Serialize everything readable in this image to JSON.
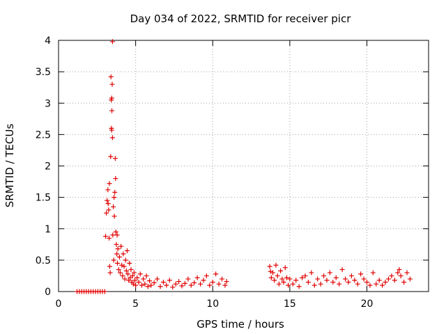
{
  "chart_data": {
    "type": "scatter",
    "title": "Day 034 of 2022, SRMTID for receiver picr",
    "xlabel": "GPS time / hours",
    "ylabel": "SRMTID / TECUs",
    "xlim": [
      0,
      24
    ],
    "ylim": [
      0,
      4
    ],
    "grid": true,
    "marker": "+",
    "series_color": "#e00000",
    "x_ticks": [
      0,
      5,
      10,
      15,
      20
    ],
    "x_tick_labels": [
      "0",
      "5",
      "10",
      "15",
      "20"
    ],
    "y_ticks": [
      0,
      0.5,
      1,
      1.5,
      2,
      2.5,
      3,
      3.5,
      4
    ],
    "y_tick_labels": [
      "0",
      "0.5",
      "1",
      "1.5",
      "2",
      "2.5",
      "3",
      "3.5",
      "4"
    ],
    "points": [
      [
        1.2,
        0
      ],
      [
        1.35,
        0
      ],
      [
        1.5,
        0
      ],
      [
        1.65,
        0
      ],
      [
        1.8,
        0
      ],
      [
        1.95,
        0
      ],
      [
        2.1,
        0
      ],
      [
        2.25,
        0
      ],
      [
        2.4,
        0
      ],
      [
        2.55,
        0
      ],
      [
        2.7,
        0
      ],
      [
        2.85,
        0
      ],
      [
        3.0,
        0
      ],
      [
        3.05,
        0.88
      ],
      [
        3.1,
        1.25
      ],
      [
        3.15,
        1.45
      ],
      [
        3.2,
        1.62
      ],
      [
        3.22,
        1.4
      ],
      [
        3.25,
        1.3
      ],
      [
        3.28,
        0.85
      ],
      [
        3.3,
        1.72
      ],
      [
        3.32,
        0.4
      ],
      [
        3.35,
        0.3
      ],
      [
        3.38,
        2.15
      ],
      [
        3.4,
        3.42
      ],
      [
        3.42,
        3.05
      ],
      [
        3.43,
        2.6
      ],
      [
        3.45,
        3.08
      ],
      [
        3.45,
        2.57
      ],
      [
        3.46,
        2.88
      ],
      [
        3.48,
        3.3
      ],
      [
        3.5,
        3.98
      ],
      [
        3.5,
        2.45
      ],
      [
        3.52,
        0.9
      ],
      [
        3.55,
        1.35
      ],
      [
        3.58,
        0.5
      ],
      [
        3.6,
        1.5
      ],
      [
        3.62,
        1.2
      ],
      [
        3.65,
        1.58
      ],
      [
        3.68,
        2.12
      ],
      [
        3.7,
        1.8
      ],
      [
        3.72,
        0.95
      ],
      [
        3.75,
        0.75
      ],
      [
        3.78,
        0.6
      ],
      [
        3.8,
        0.9
      ],
      [
        3.82,
        0.45
      ],
      [
        3.85,
        0.68
      ],
      [
        3.9,
        0.35
      ],
      [
        3.95,
        0.55
      ],
      [
        4.0,
        0.3
      ],
      [
        4.05,
        0.72
      ],
      [
        4.1,
        0.42
      ],
      [
        4.15,
        0.25
      ],
      [
        4.2,
        0.6
      ],
      [
        4.25,
        0.4
      ],
      [
        4.3,
        0.2
      ],
      [
        4.35,
        0.5
      ],
      [
        4.4,
        0.33
      ],
      [
        4.45,
        0.65
      ],
      [
        4.5,
        0.28
      ],
      [
        4.55,
        0.18
      ],
      [
        4.6,
        0.45
      ],
      [
        4.65,
        0.22
      ],
      [
        4.7,
        0.35
      ],
      [
        4.75,
        0.15
      ],
      [
        4.8,
        0.25
      ],
      [
        4.85,
        0.12
      ],
      [
        4.9,
        0.3
      ],
      [
        4.95,
        0.18
      ],
      [
        5.0,
        0.1
      ],
      [
        5.1,
        0.22
      ],
      [
        5.2,
        0.15
      ],
      [
        5.3,
        0.28
      ],
      [
        5.4,
        0.1
      ],
      [
        5.5,
        0.2
      ],
      [
        5.6,
        0.12
      ],
      [
        5.7,
        0.25
      ],
      [
        5.8,
        0.08
      ],
      [
        5.9,
        0.17
      ],
      [
        6.0,
        0.1
      ],
      [
        6.2,
        0.14
      ],
      [
        6.4,
        0.2
      ],
      [
        6.6,
        0.08
      ],
      [
        6.8,
        0.15
      ],
      [
        7.0,
        0.1
      ],
      [
        7.2,
        0.18
      ],
      [
        7.4,
        0.07
      ],
      [
        7.6,
        0.12
      ],
      [
        7.8,
        0.16
      ],
      [
        8.0,
        0.09
      ],
      [
        8.2,
        0.13
      ],
      [
        8.4,
        0.2
      ],
      [
        8.6,
        0.1
      ],
      [
        8.8,
        0.14
      ],
      [
        9.0,
        0.22
      ],
      [
        9.2,
        0.12
      ],
      [
        9.4,
        0.18
      ],
      [
        9.6,
        0.25
      ],
      [
        9.8,
        0.1
      ],
      [
        10.0,
        0.15
      ],
      [
        10.2,
        0.28
      ],
      [
        10.4,
        0.12
      ],
      [
        10.6,
        0.2
      ],
      [
        10.8,
        0.1
      ],
      [
        10.9,
        0.16
      ],
      [
        13.7,
        0.4
      ],
      [
        13.75,
        0.32
      ],
      [
        13.8,
        0.22
      ],
      [
        13.9,
        0.3
      ],
      [
        14.0,
        0.18
      ],
      [
        14.1,
        0.42
      ],
      [
        14.2,
        0.25
      ],
      [
        14.3,
        0.12
      ],
      [
        14.4,
        0.33
      ],
      [
        14.5,
        0.2
      ],
      [
        14.6,
        0.15
      ],
      [
        14.7,
        0.38
      ],
      [
        14.8,
        0.22
      ],
      [
        14.9,
        0.1
      ],
      [
        15.0,
        0.2
      ],
      [
        15.2,
        0.12
      ],
      [
        15.4,
        0.18
      ],
      [
        15.6,
        0.08
      ],
      [
        15.8,
        0.22
      ],
      [
        16.0,
        0.25
      ],
      [
        16.2,
        0.15
      ],
      [
        16.4,
        0.3
      ],
      [
        16.6,
        0.1
      ],
      [
        16.8,
        0.2
      ],
      [
        17.0,
        0.12
      ],
      [
        17.2,
        0.25
      ],
      [
        17.4,
        0.18
      ],
      [
        17.6,
        0.3
      ],
      [
        17.8,
        0.15
      ],
      [
        18.0,
        0.22
      ],
      [
        18.2,
        0.12
      ],
      [
        18.4,
        0.35
      ],
      [
        18.6,
        0.2
      ],
      [
        18.8,
        0.15
      ],
      [
        19.0,
        0.25
      ],
      [
        19.2,
        0.18
      ],
      [
        19.4,
        0.12
      ],
      [
        19.6,
        0.28
      ],
      [
        19.8,
        0.2
      ],
      [
        20.0,
        0.15
      ],
      [
        20.2,
        0.1
      ],
      [
        20.4,
        0.3
      ],
      [
        20.6,
        0.12
      ],
      [
        20.8,
        0.18
      ],
      [
        21.0,
        0.1
      ],
      [
        21.2,
        0.15
      ],
      [
        21.4,
        0.2
      ],
      [
        21.6,
        0.25
      ],
      [
        21.8,
        0.18
      ],
      [
        22.0,
        0.3
      ],
      [
        22.1,
        0.35
      ],
      [
        22.2,
        0.25
      ],
      [
        22.4,
        0.15
      ],
      [
        22.6,
        0.3
      ],
      [
        22.8,
        0.2
      ]
    ]
  }
}
